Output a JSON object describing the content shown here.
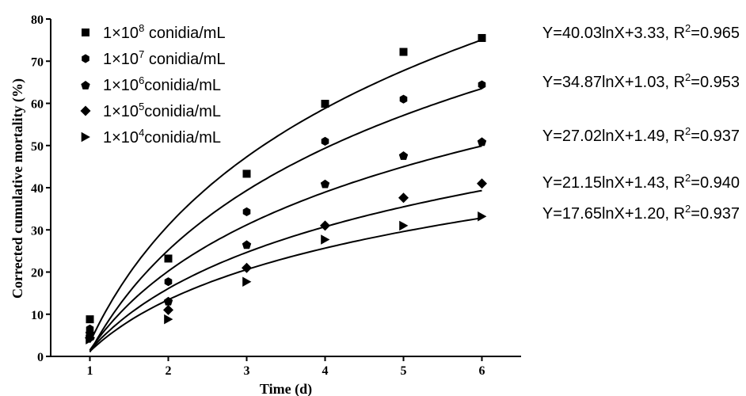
{
  "chart_data": {
    "type": "scatter",
    "xlabel": "Time (d)",
    "ylabel": "Corrected cumulative mortality (%)",
    "xlim": [
      0.5,
      6.5
    ],
    "ylim": [
      0,
      80
    ],
    "x_ticks": [
      1,
      2,
      3,
      4,
      5,
      6
    ],
    "y_ticks": [
      0,
      10,
      20,
      30,
      40,
      50,
      60,
      70,
      80
    ],
    "grid": false,
    "legend_position": "top-left",
    "x": [
      1,
      2,
      3,
      4,
      5,
      6
    ],
    "series": [
      {
        "name": "1×10⁸ conidia/mL",
        "marker": "square",
        "values": [
          8.8,
          23.2,
          43.3,
          59.9,
          72.2,
          75.5
        ],
        "fit": {
          "a": 40.03,
          "b": 3.33
        },
        "equation": "Y=40.03lnX+3.33, R²=0.965"
      },
      {
        "name": "1×10⁷ conidia/mL",
        "marker": "hexagon",
        "values": [
          6.5,
          17.7,
          34.3,
          51.0,
          61.0,
          64.4
        ],
        "fit": {
          "a": 34.87,
          "b": 1.03
        },
        "equation": "Y=34.87lnX+1.03, R²=0.953"
      },
      {
        "name": "1×10⁶conidia/mL",
        "marker": "pentagon",
        "values": [
          5.6,
          13.2,
          26.6,
          41.0,
          47.7,
          51.0
        ],
        "fit": {
          "a": 27.02,
          "b": 1.49
        },
        "equation": "Y=27.02lnX+1.49, R²=0.937"
      },
      {
        "name": "1×10⁵conidia/mL",
        "marker": "diamond",
        "values": [
          4.4,
          11.0,
          21.0,
          31.0,
          37.6,
          41.0
        ],
        "fit": {
          "a": 21.15,
          "b": 1.43
        },
        "equation": "Y=21.15lnX+1.43, R²=0.940"
      },
      {
        "name": "1×10⁴conidia/mL",
        "marker": "triangle-right",
        "values": [
          4.0,
          8.8,
          17.7,
          27.7,
          31.0,
          33.2
        ],
        "fit": {
          "a": 17.65,
          "b": 1.2
        },
        "equation": "Y=17.65lnX+1.20, R²=0.937"
      }
    ]
  }
}
